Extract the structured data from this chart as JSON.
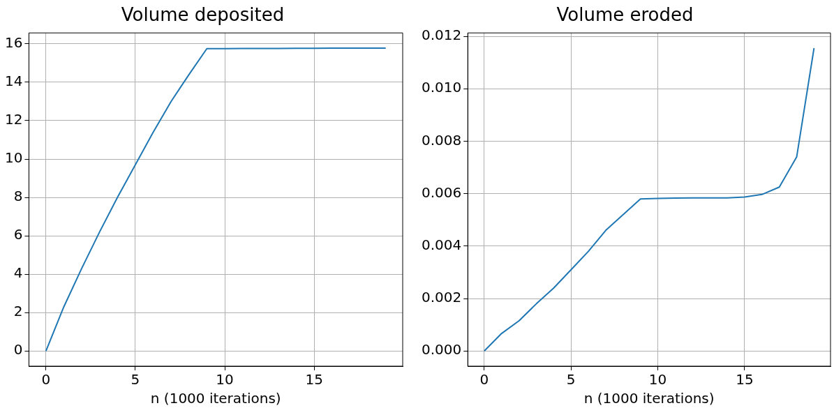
{
  "chart_data": [
    {
      "type": "line",
      "title": "Volume deposited",
      "xlabel": "n (1000 iterations)",
      "x": [
        0,
        1,
        2,
        3,
        4,
        5,
        6,
        7,
        8,
        9,
        10,
        11,
        12,
        13,
        14,
        15,
        16,
        17,
        18,
        19
      ],
      "series": [
        {
          "color": "#1f77b4",
          "values": [
            0,
            2.3,
            4.3,
            6.2,
            8.0,
            9.7,
            11.4,
            13.0,
            14.4,
            15.75,
            15.75,
            15.76,
            15.76,
            15.76,
            15.77,
            15.77,
            15.78,
            15.78,
            15.78,
            15.78
          ]
        }
      ],
      "xlim": [
        -0.95,
        19.95
      ],
      "ylim": [
        -0.79,
        16.57
      ],
      "xticks": [
        0,
        5,
        10,
        15
      ],
      "yticks": [
        0,
        2,
        4,
        6,
        8,
        10,
        12,
        14,
        16
      ],
      "grid": true,
      "line_style": "solid",
      "marker": "none"
    },
    {
      "type": "line",
      "title": "Volume eroded",
      "xlabel": "n (1000 iterations)",
      "x": [
        0,
        1,
        2,
        3,
        4,
        5,
        6,
        7,
        8,
        9,
        10,
        11,
        12,
        13,
        14,
        15,
        16,
        17,
        18,
        19
      ],
      "series": [
        {
          "color": "#1f77b4",
          "values": [
            0,
            0.00067,
            0.00115,
            0.0018,
            0.0024,
            0.0031,
            0.0038,
            0.0046,
            0.0052,
            0.0058,
            0.00582,
            0.00583,
            0.00584,
            0.00584,
            0.00584,
            0.00587,
            0.00597,
            0.00625,
            0.0074,
            0.01155
          ]
        }
      ],
      "xlim": [
        -0.95,
        19.95
      ],
      "ylim": [
        -0.000578,
        0.01213
      ],
      "xticks": [
        0,
        5,
        10,
        15
      ],
      "yticks": [
        {
          "value": 0,
          "label": "0.000"
        },
        {
          "value": 0.002,
          "label": "0.002"
        },
        {
          "value": 0.004,
          "label": "0.004"
        },
        {
          "value": 0.006,
          "label": "0.006"
        },
        {
          "value": 0.008,
          "label": "0.008"
        },
        {
          "value": 0.01,
          "label": "0.010"
        },
        {
          "value": 0.012,
          "label": "0.012"
        }
      ],
      "grid": true,
      "line_style": "solid",
      "marker": "none"
    }
  ]
}
